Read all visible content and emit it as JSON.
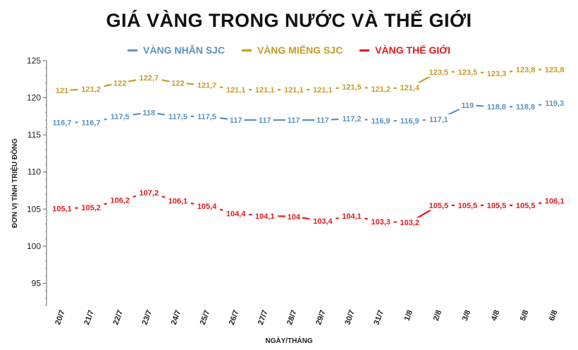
{
  "chart_data": {
    "type": "line",
    "title": "GIÁ VÀNG TRONG NƯỚC VÀ THẾ GIỚI",
    "xlabel": "NGÀY/THÁNG",
    "ylabel": "ĐƠN VỊ TÍNH TRIỆU ĐỒNG",
    "ylim": [
      92,
      125
    ],
    "yticks": [
      95,
      100,
      105,
      110,
      115,
      120,
      125
    ],
    "grid": false,
    "legend": "top-center",
    "categories": [
      "20/7",
      "21/7",
      "22/7",
      "23/7",
      "24/7",
      "25/7",
      "26/7",
      "27/7",
      "28/7",
      "29/7",
      "30/7",
      "31/7",
      "1/8",
      "2/8",
      "3/8",
      "4/8",
      "5/8",
      "6/8"
    ],
    "series": [
      {
        "name": "VÀNG NHẪN SJC",
        "color": "#5a93be",
        "values": [
          116.7,
          116.7,
          117.5,
          118,
          117.5,
          117.5,
          117,
          117,
          117,
          117,
          117.2,
          116.9,
          116.9,
          117.1,
          119,
          118.8,
          118.8,
          119.3
        ],
        "labels": [
          "116,7",
          "116,7",
          "117,5",
          "118",
          "117,5",
          "117,5",
          "117",
          "117",
          "117",
          "117",
          "117,2",
          "116,9",
          "116,9",
          "117,1",
          "119",
          "118,8",
          "118,8",
          "119,3"
        ]
      },
      {
        "name": "VÀNG MIẾNG SJC",
        "color": "#c99b27",
        "values": [
          121,
          121.2,
          122,
          122.7,
          122,
          121.7,
          121.1,
          121.1,
          121.1,
          121.1,
          121.5,
          121.2,
          121.4,
          123.5,
          123.5,
          123.3,
          123.8,
          123.8
        ],
        "labels": [
          "121",
          "121,2",
          "122",
          "122,7",
          "122",
          "121,7",
          "121,1",
          "121,1",
          "121,1",
          "121,1",
          "121,5",
          "121,2",
          "121,4",
          "123,5",
          "123,5",
          "123,3",
          "123,8",
          "123,8"
        ]
      },
      {
        "name": "VÀNG THẾ GIỚI",
        "color": "#e3191c",
        "values": [
          105.1,
          105.2,
          106.2,
          107.2,
          106.1,
          105.4,
          104.4,
          104.1,
          104,
          103.4,
          104.1,
          103.3,
          103.2,
          105.5,
          105.5,
          105.5,
          105.5,
          106.1
        ],
        "labels": [
          "105,1",
          "105,2",
          "106,2",
          "107,2",
          "106,1",
          "105,4",
          "104,4",
          "104,1",
          "104",
          "103,4",
          "104,1",
          "103,3",
          "103,2",
          "105,5",
          "105,5",
          "105,5",
          "105,5",
          "106,1"
        ]
      }
    ]
  }
}
